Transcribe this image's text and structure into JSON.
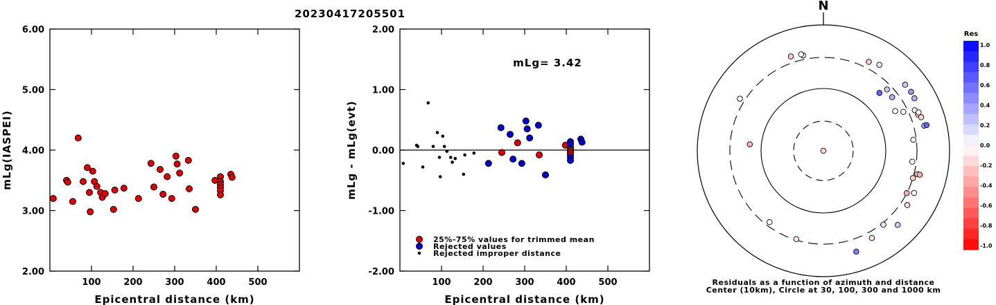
{
  "title": "20230417205501",
  "chart_data": [
    {
      "type": "scatter",
      "xlabel": "Epicentral distance (km)",
      "ylabel": "mLg(IASPEI)",
      "xlim": [
        0,
        600
      ],
      "ylim": [
        2.0,
        6.0
      ],
      "xticks": [
        "100",
        "200",
        "300",
        "400",
        "500"
      ],
      "yticks": [
        "2.00",
        "3.00",
        "4.00",
        "5.00",
        "6.00"
      ],
      "series": [
        {
          "marker": "red-circle",
          "points": [
            [
              8,
              3.2
            ],
            [
              40,
              3.5
            ],
            [
              43,
              3.47
            ],
            [
              55,
              3.15
            ],
            [
              68,
              4.2
            ],
            [
              80,
              3.48
            ],
            [
              90,
              3.71
            ],
            [
              95,
              3.3
            ],
            [
              97,
              2.98
            ],
            [
              103,
              3.65
            ],
            [
              107,
              3.48
            ],
            [
              113,
              3.4
            ],
            [
              122,
              3.3
            ],
            [
              126,
              3.22
            ],
            [
              133,
              3.28
            ],
            [
              153,
              3.02
            ],
            [
              156,
              3.34
            ],
            [
              178,
              3.37
            ],
            [
              213,
              3.2
            ],
            [
              243,
              3.78
            ],
            [
              250,
              3.39
            ],
            [
              265,
              3.68
            ],
            [
              272,
              3.27
            ],
            [
              282,
              3.56
            ],
            [
              293,
              3.2
            ],
            [
              303,
              3.9
            ],
            [
              306,
              3.77
            ],
            [
              312,
              3.62
            ],
            [
              333,
              3.83
            ],
            [
              335,
              3.36
            ],
            [
              350,
              3.02
            ],
            [
              397,
              3.5
            ],
            [
              410,
              3.56
            ],
            [
              410,
              3.48
            ],
            [
              410,
              3.43
            ],
            [
              410,
              3.38
            ],
            [
              410,
              3.33
            ],
            [
              410,
              3.26
            ],
            [
              435,
              3.6
            ],
            [
              438,
              3.55
            ]
          ]
        }
      ]
    },
    {
      "type": "scatter",
      "xlabel": "Epicentral distance (km)",
      "ylabel": "mLg - mLg(evt)",
      "xlim": [
        0,
        600
      ],
      "ylim": [
        -2.0,
        2.0
      ],
      "xticks": [
        "100",
        "200",
        "300",
        "400",
        "500"
      ],
      "yticks": [
        "-2.00",
        "-1.00",
        "0.00",
        "1.00",
        "2.00"
      ],
      "annotation": "mLg= 3.42",
      "zero_line": true,
      "series": [
        {
          "name": "25%-75% values for trimmed mean",
          "color": "#dd0000",
          "points": [
            [
              245,
              -0.04
            ],
            [
              283,
              0.12
            ],
            [
              335,
              -0.08
            ],
            [
              398,
              0.08
            ],
            [
              410,
              0.05
            ],
            [
              410,
              0.02
            ],
            [
              410,
              -0.02
            ],
            [
              410,
              -0.05
            ],
            [
              410,
              -0.08
            ]
          ]
        },
        {
          "name": "Rejected values",
          "color": "#0000cc",
          "points": [
            [
              213,
              -0.22
            ],
            [
              243,
              0.37
            ],
            [
              265,
              0.26
            ],
            [
              272,
              -0.15
            ],
            [
              293,
              -0.22
            ],
            [
              303,
              0.48
            ],
            [
              306,
              0.35
            ],
            [
              312,
              0.2
            ],
            [
              333,
              0.41
            ],
            [
              350,
              -0.41
            ],
            [
              410,
              0.14
            ],
            [
              410,
              0.1
            ],
            [
              410,
              -0.12
            ],
            [
              410,
              -0.17
            ],
            [
              435,
              0.18
            ],
            [
              438,
              0.13
            ]
          ]
        },
        {
          "name": "Rejected improper distance",
          "color": "#000000",
          "points": [
            [
              8,
              -0.22
            ],
            [
              40,
              0.08
            ],
            [
              43,
              0.06
            ],
            [
              55,
              -0.28
            ],
            [
              68,
              0.78
            ],
            [
              80,
              0.06
            ],
            [
              90,
              0.29
            ],
            [
              95,
              -0.12
            ],
            [
              97,
              -0.44
            ],
            [
              103,
              0.23
            ],
            [
              107,
              0.06
            ],
            [
              113,
              -0.02
            ],
            [
              122,
              -0.12
            ],
            [
              126,
              -0.2
            ],
            [
              133,
              -0.14
            ],
            [
              153,
              -0.4
            ],
            [
              156,
              -0.08
            ],
            [
              178,
              -0.05
            ]
          ]
        }
      ]
    },
    {
      "type": "polar-scatter",
      "north_label": "N",
      "caption": [
        "Residuals as a function of azimuth and distance",
        "Center (10km), Circle at 30, 100, 300 and 1000 km"
      ],
      "rings_km": [
        30,
        100,
        300,
        1000
      ],
      "colorbar": {
        "title": "Res",
        "labels": [
          "1.0",
          "0.8",
          "0.6",
          "0.4",
          "0.2",
          "0.0",
          "-0.2",
          "-0.4",
          "-0.6",
          "-0.8",
          "-1.0"
        ],
        "positive_color": "#0000ff",
        "negative_color": "#ff0000"
      },
      "points": [
        {
          "az": 90,
          "dist": 10,
          "res": 0.0
        },
        {
          "az": 270,
          "dist": 10,
          "res": -0.15
        },
        {
          "az": 348,
          "dist": 350,
          "res": 0.0
        },
        {
          "az": 347,
          "dist": 370,
          "res": 0.0
        },
        {
          "az": 341,
          "dist": 380,
          "res": -0.2
        },
        {
          "az": 302,
          "dist": 360,
          "res": 0.0
        },
        {
          "az": 275,
          "dist": 150,
          "res": -0.3
        },
        {
          "az": 217,
          "dist": 260,
          "res": 0.0
        },
        {
          "az": 197,
          "dist": 290,
          "res": -0.1
        },
        {
          "az": 27,
          "dist": 380,
          "res": -0.2
        },
        {
          "az": 33,
          "dist": 420,
          "res": 0.1
        },
        {
          "az": 44,
          "dist": 190,
          "res": 0.6
        },
        {
          "az": 52,
          "dist": 240,
          "res": 0.3
        },
        {
          "az": 46,
          "dist": 250,
          "res": 0.2
        },
        {
          "az": 61,
          "dist": 200,
          "res": 0.0
        },
        {
          "az": 64,
          "dist": 255,
          "res": 0.0
        },
        {
          "az": 51,
          "dist": 460,
          "res": 0.2
        },
        {
          "az": 56,
          "dist": 470,
          "res": 0.4
        },
        {
          "az": 60,
          "dist": 460,
          "res": 0.3
        },
        {
          "az": 66,
          "dist": 380,
          "res": -0.1
        },
        {
          "az": 69,
          "dist": 400,
          "res": -0.2
        },
        {
          "az": 68,
          "dist": 420,
          "res": 0.0
        },
        {
          "az": 71,
          "dist": 430,
          "res": -0.15
        },
        {
          "az": 76,
          "dist": 440,
          "res": 0.3
        },
        {
          "az": 76,
          "dist": 480,
          "res": 0.6
        },
        {
          "az": 83,
          "dist": 270,
          "res": 0.0
        },
        {
          "az": 97,
          "dist": 260,
          "res": 0.0
        },
        {
          "az": 107,
          "dist": 300,
          "res": -0.2
        },
        {
          "az": 104,
          "dist": 340,
          "res": -0.1
        },
        {
          "az": 104,
          "dist": 370,
          "res": -0.3
        },
        {
          "az": 117,
          "dist": 300,
          "res": -0.3
        },
        {
          "az": 115,
          "dist": 380,
          "res": 0.0
        },
        {
          "az": 123,
          "dist": 380,
          "res": -0.15
        },
        {
          "az": 135,
          "dist": 460,
          "res": 0.2
        },
        {
          "az": 141,
          "dist": 320,
          "res": -0.1
        },
        {
          "az": 151,
          "dist": 380,
          "res": -0.1
        },
        {
          "az": 162,
          "dist": 480,
          "res": 0.5
        }
      ]
    }
  ]
}
